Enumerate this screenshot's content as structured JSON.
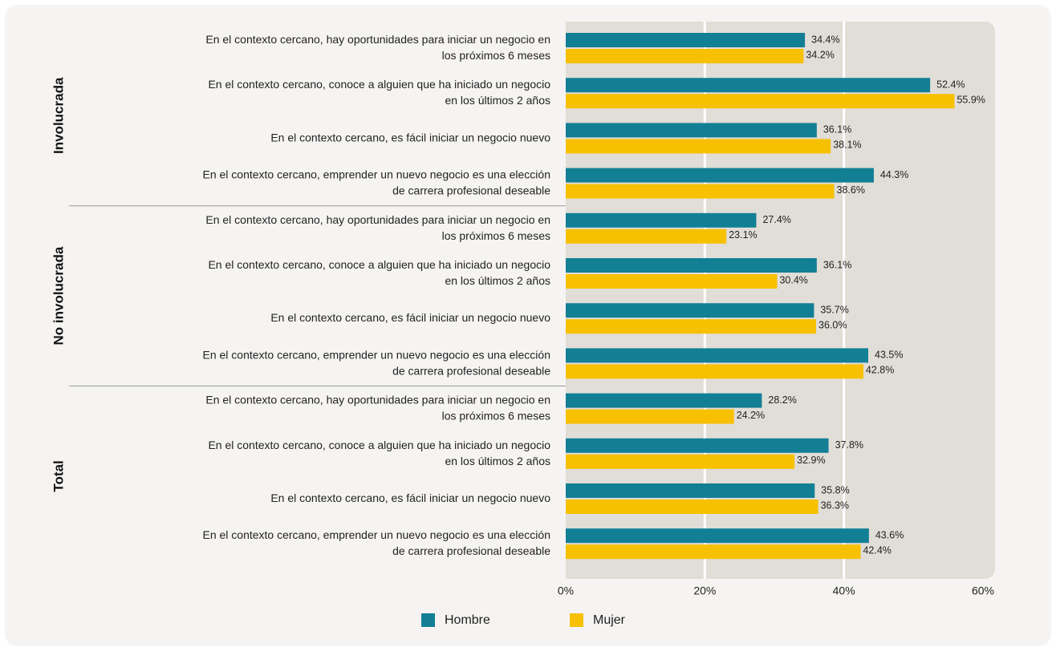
{
  "chart_data": {
    "type": "bar",
    "orientation": "horizontal",
    "groups": [
      "Involucrada",
      "No involucrada",
      "Total"
    ],
    "categories": [
      [
        "En el contexto cercano, hay oportunidades para iniciar un negocio en",
        "los próximos 6 meses"
      ],
      [
        "En el contexto cercano, conoce a alguien que ha iniciado un negocio",
        "en los últimos 2 años"
      ],
      [
        "En el contexto cercano, es fácil iniciar un negocio nuevo"
      ],
      [
        "En el contexto cercano, emprender un nuevo negocio es una elección",
        "de carrera profesional deseable"
      ],
      [
        "En el contexto cercano, hay oportunidades para iniciar un negocio en",
        "los próximos 6 meses"
      ],
      [
        "En el contexto cercano, conoce a alguien que ha iniciado un negocio",
        "en los últimos 2 años"
      ],
      [
        "En el contexto cercano, es fácil iniciar un negocio nuevo"
      ],
      [
        "En el contexto cercano, emprender un nuevo negocio es una elección",
        "de carrera profesional deseable"
      ],
      [
        "En el contexto cercano, hay oportunidades para iniciar un negocio en",
        "los próximos 6 meses"
      ],
      [
        "En el contexto cercano, conoce a alguien que ha iniciado un negocio",
        "en los últimos 2 años"
      ],
      [
        "En el contexto cercano, es fácil iniciar un negocio nuevo"
      ],
      [
        "En el contexto cercano, emprender un nuevo negocio es una elección",
        "de carrera profesional deseable"
      ]
    ],
    "series": [
      {
        "name": "Hombre",
        "color": "#127f95",
        "values": [
          34.4,
          52.4,
          36.1,
          44.3,
          27.4,
          36.1,
          35.7,
          43.5,
          28.2,
          37.8,
          35.8,
          43.6
        ],
        "value_labels": [
          "34.4%",
          "52.4%",
          "36.1%",
          "44.3%",
          "27.4%",
          "36.1%",
          "35.7%",
          "43.5%",
          "28.2%",
          "37.8%",
          "35.8%",
          "43.6%"
        ]
      },
      {
        "name": "Mujer",
        "color": "#f7c000",
        "values": [
          34.2,
          55.9,
          38.1,
          38.6,
          23.1,
          30.4,
          36.0,
          42.8,
          24.2,
          32.9,
          36.3,
          42.4
        ],
        "value_labels": [
          "34.2%",
          "55.9%",
          "38.1%",
          "38.6%",
          "23.1%",
          "30.4%",
          "36.0%",
          "42.8%",
          "24.2%",
          "32.9%",
          "36.3%",
          "42.4%"
        ]
      }
    ],
    "xlim": [
      0,
      60
    ],
    "xticks": [
      {
        "value": 0,
        "label": "0%"
      },
      {
        "value": 20,
        "label": "20%"
      },
      {
        "value": 40,
        "label": "40%"
      },
      {
        "value": 60,
        "label": "60%"
      }
    ],
    "grid": true
  }
}
